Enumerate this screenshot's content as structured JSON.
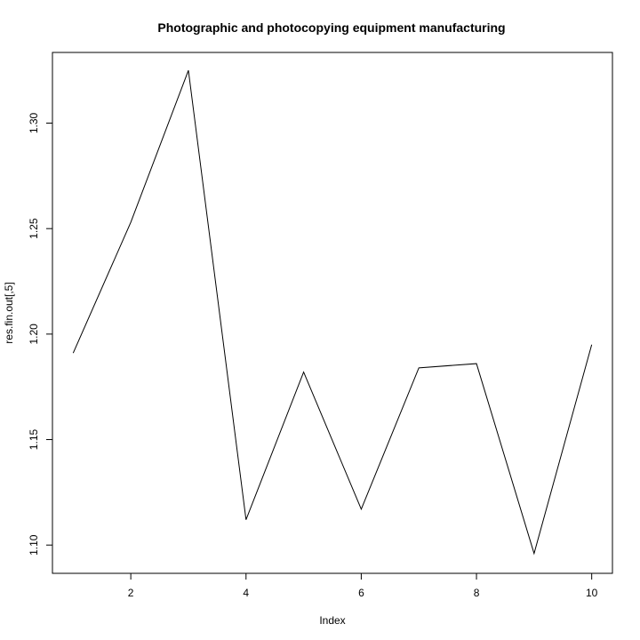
{
  "chart_data": {
    "type": "line",
    "title": "Photographic and photocopying equipment manufacturing",
    "xlabel": "Index",
    "ylabel": "res.fin.out[,5]",
    "x": [
      1,
      2,
      3,
      4,
      5,
      6,
      7,
      8,
      9,
      10
    ],
    "series": [
      {
        "values": [
          1.191,
          1.253,
          1.325,
          1.112,
          1.182,
          1.117,
          1.184,
          1.186,
          1.096,
          1.195
        ]
      }
    ],
    "xlim": [
      0.64,
      10.36
    ],
    "ylim": [
      1.0866,
      1.3335
    ],
    "xticks": [
      2,
      4,
      6,
      8,
      10
    ],
    "xtick_labels": [
      "2",
      "4",
      "6",
      "8",
      "10"
    ],
    "yticks": [
      1.1,
      1.15,
      1.2,
      1.25,
      1.3
    ],
    "ytick_labels": [
      "1.10",
      "1.15",
      "1.20",
      "1.25",
      "1.30"
    ],
    "grid": false,
    "line_color": "#000000"
  }
}
